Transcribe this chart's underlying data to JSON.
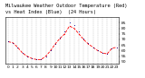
{
  "title": "Milwaukee Weather Outdoor Temperature (Red) vs Heat Index (Blue) (24 Hours)",
  "title_line1": "Milwaukee Weather Outdoor Temperature (Red)",
  "title_line2": "vs Heat Index (Blue)  (24 Hours)",
  "x_hours": [
    0,
    1,
    2,
    3,
    4,
    5,
    6,
    7,
    8,
    9,
    10,
    11,
    12,
    13,
    14,
    15,
    16,
    17,
    18,
    19,
    20,
    21,
    22,
    23
  ],
  "temp_red": [
    68,
    67,
    63,
    58,
    55,
    53,
    52,
    52,
    55,
    60,
    66,
    71,
    75,
    82,
    80,
    75,
    70,
    66,
    63,
    60,
    58,
    57,
    62,
    63
  ],
  "heat_blue": [
    68,
    67,
    63,
    58,
    55,
    53,
    52,
    52,
    55,
    60,
    66,
    72,
    77,
    85,
    83,
    77,
    71,
    67,
    63,
    60,
    58,
    57,
    62,
    63
  ],
  "ylim": [
    48,
    90
  ],
  "ytick_vals": [
    50,
    55,
    60,
    65,
    70,
    75,
    80,
    85
  ],
  "ytick_labels": [
    "50",
    "55",
    "60",
    "65",
    "70",
    "75",
    "80",
    "85"
  ],
  "bg_color": "#ffffff",
  "red_color": "#ff0000",
  "blue_color": "#000099",
  "grid_color": "#bbbbbb",
  "title_fontsize": 3.8,
  "tick_fontsize": 3.2,
  "line_width": 0.6,
  "marker_size": 1.2
}
